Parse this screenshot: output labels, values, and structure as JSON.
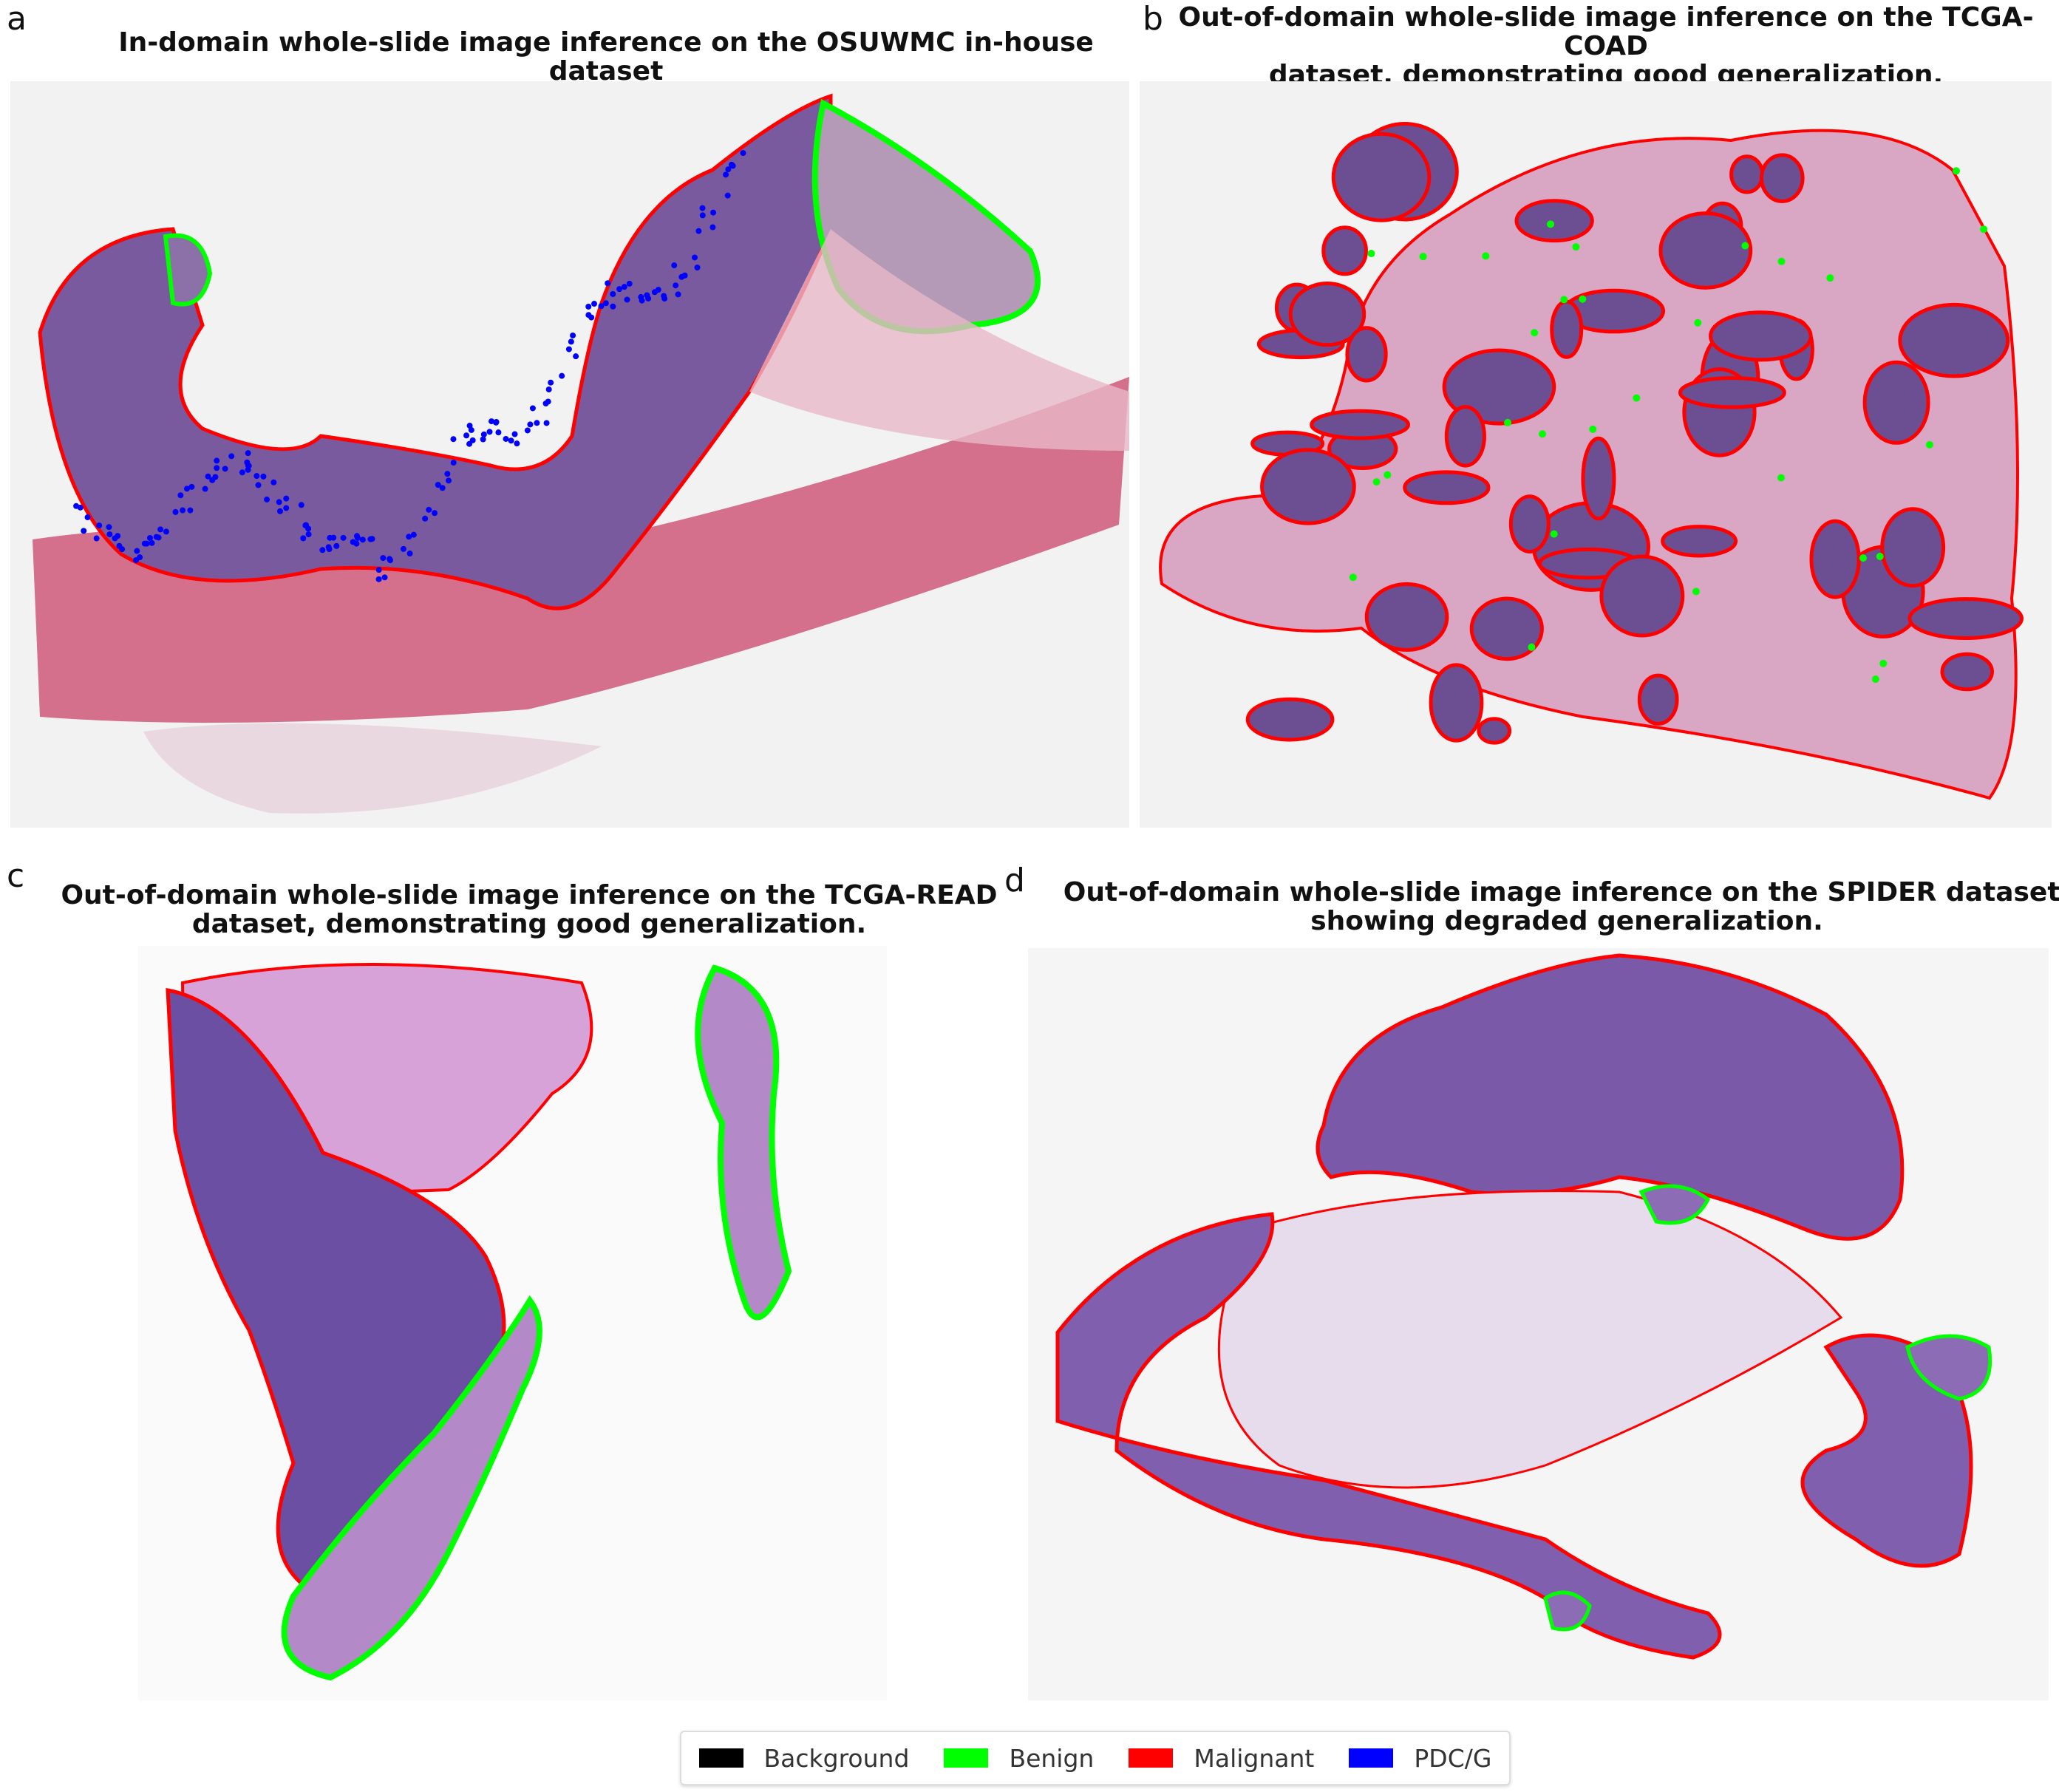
{
  "panels": [
    {
      "label": "a",
      "title": "In-domain whole-slide image inference on the OSUWMC in-house dataset"
    },
    {
      "label": "b",
      "title_lines": [
        "Out-of-domain whole-slide image inference on the TCGA-COAD",
        "dataset, demonstrating good generalization."
      ]
    },
    {
      "label": "c",
      "title_lines": [
        "Out-of-domain whole-slide image inference on the TCGA-READ",
        "dataset, demonstrating good generalization."
      ]
    },
    {
      "label": "d",
      "title_lines": [
        "Out-of-domain whole-slide image inference on the SPIDER dataset,",
        "showing degraded generalization."
      ]
    }
  ],
  "legend": {
    "items": [
      {
        "label": "Background",
        "color": "#000000"
      },
      {
        "label": "Benign",
        "color": "#00ff00"
      },
      {
        "label": "Malignant",
        "color": "#ff0000"
      },
      {
        "label": "PDC/G",
        "color": "#0000ff"
      }
    ]
  },
  "colors": {
    "tissue_purple": "#7a5a9e",
    "tissue_pink": "#d8708e",
    "stroma": "#e8c6d8"
  }
}
